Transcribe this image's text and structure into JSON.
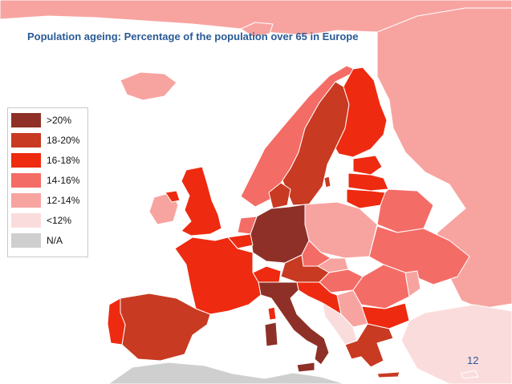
{
  "title": "Population ageing: Percentage of the population over 65 in Europe",
  "legend": [
    {
      "label": ">20%",
      "color": "#8e3027"
    },
    {
      "label": "18-20%",
      "color": "#c83a22"
    },
    {
      "label": "16-18%",
      "color": "#ee2a10"
    },
    {
      "label": "14-16%",
      "color": "#f46c66"
    },
    {
      "label": "12-14%",
      "color": "#f7a4a1"
    },
    {
      "label": "<12%",
      "color": "#fbdcdc"
    },
    {
      "label": "N/A",
      "color": "#cfcfcf"
    }
  ],
  "page_number": "12",
  "colors": {
    "over20": "#8e3027",
    "c18_20": "#c83a22",
    "c16_18": "#ee2a10",
    "c14_16": "#f46c66",
    "c12_14": "#f7a4a1",
    "under12": "#fbdcdc",
    "na": "#cfcfcf",
    "border": "#ffffff",
    "title": "#2a5a96"
  }
}
